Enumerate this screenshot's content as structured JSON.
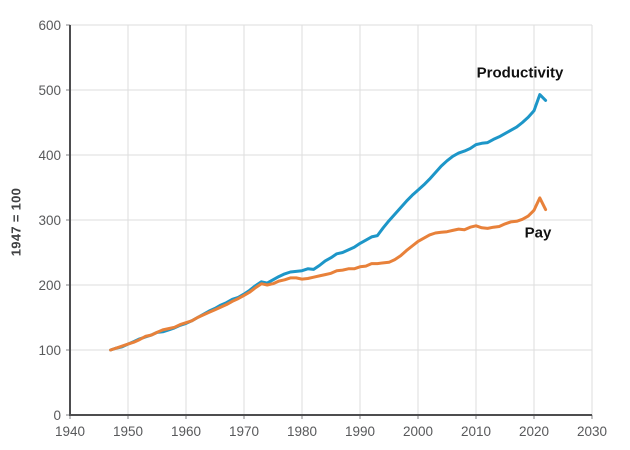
{
  "chart_data": {
    "type": "line",
    "title": "",
    "xlabel": "",
    "ylabel": "1947 = 100",
    "xlim": [
      1940,
      2030
    ],
    "ylim": [
      0,
      600
    ],
    "x_ticks": [
      1940,
      1950,
      1960,
      1970,
      1980,
      1990,
      2000,
      2010,
      2020,
      2030
    ],
    "y_ticks": [
      0,
      100,
      200,
      300,
      400,
      500,
      600
    ],
    "grid": true,
    "legend_position": "inline-labels",
    "x": [
      1947,
      1948,
      1949,
      1950,
      1951,
      1952,
      1953,
      1954,
      1955,
      1956,
      1957,
      1958,
      1959,
      1960,
      1961,
      1962,
      1963,
      1964,
      1965,
      1966,
      1967,
      1968,
      1969,
      1970,
      1971,
      1972,
      1973,
      1974,
      1975,
      1976,
      1977,
      1978,
      1979,
      1980,
      1981,
      1982,
      1983,
      1984,
      1985,
      1986,
      1987,
      1988,
      1989,
      1990,
      1991,
      1992,
      1993,
      1994,
      1995,
      1996,
      1997,
      1998,
      1999,
      2000,
      2001,
      2002,
      2003,
      2004,
      2005,
      2006,
      2007,
      2008,
      2009,
      2010,
      2011,
      2012,
      2013,
      2014,
      2015,
      2016,
      2017,
      2018,
      2019,
      2020,
      2021,
      2022
    ],
    "series": [
      {
        "name": "Productivity",
        "color": "#1d96c8",
        "values": [
          100,
          103,
          105,
          109,
          113,
          117,
          120,
          123,
          127,
          128,
          131,
          134,
          138,
          141,
          145,
          150,
          155,
          160,
          164,
          169,
          173,
          178,
          181,
          186,
          192,
          199,
          205,
          203,
          208,
          213,
          217,
          220,
          221,
          222,
          225,
          224,
          230,
          237,
          242,
          248,
          250,
          254,
          258,
          264,
          269,
          274,
          276,
          288,
          299,
          309,
          319,
          329,
          338,
          346,
          354,
          363,
          373,
          383,
          391,
          398,
          403,
          406,
          410,
          416,
          418,
          419,
          424,
          428,
          433,
          438,
          443,
          450,
          458,
          468,
          493,
          484
        ]
      },
      {
        "name": "Pay",
        "color": "#e8813a",
        "values": [
          100,
          103,
          106,
          109,
          112,
          116,
          121,
          123,
          127,
          131,
          133,
          135,
          139,
          142,
          145,
          150,
          154,
          158,
          162,
          166,
          170,
          175,
          179,
          184,
          189,
          196,
          202,
          200,
          202,
          206,
          208,
          211,
          211,
          209,
          210,
          212,
          214,
          216,
          218,
          222,
          223,
          225,
          225,
          228,
          229,
          233,
          233,
          234,
          235,
          239,
          245,
          253,
          260,
          267,
          272,
          277,
          280,
          281,
          282,
          284,
          286,
          285,
          289,
          291,
          288,
          287,
          289,
          290,
          294,
          297,
          298,
          301,
          306,
          315,
          334,
          316
        ]
      }
    ],
    "colors": {
      "grid": "#dddddd",
      "axis": "#4d4d4f",
      "tick": "#808285",
      "tick_text": "#58595b",
      "annotation_text": "#111111"
    }
  }
}
